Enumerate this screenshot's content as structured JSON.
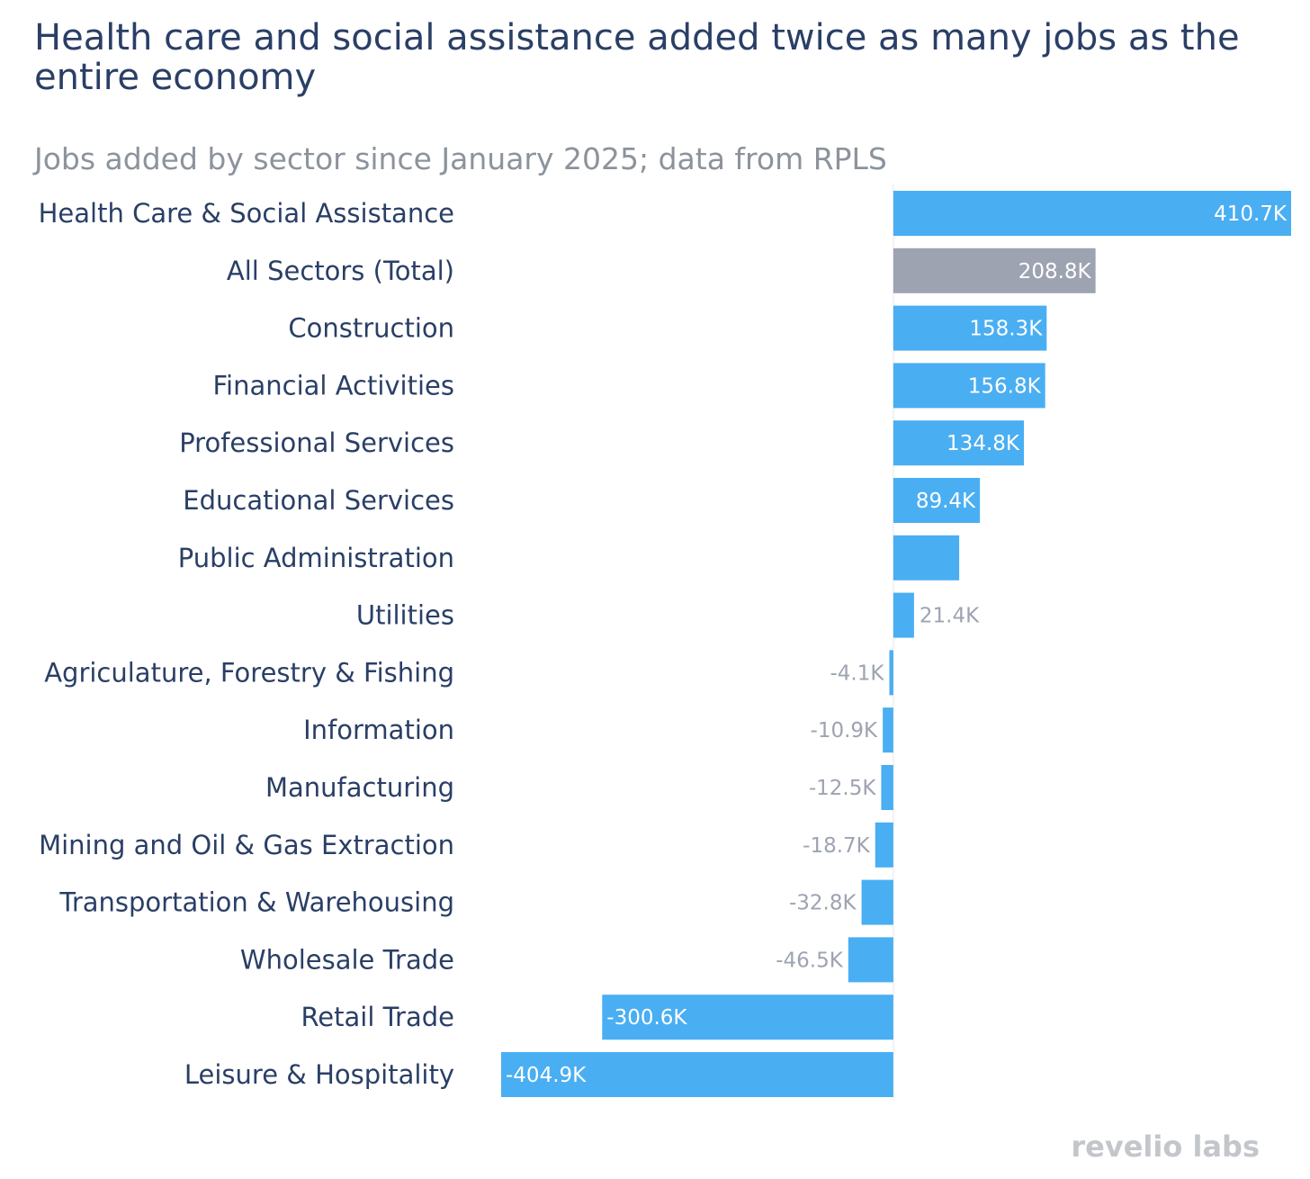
{
  "chart_data": {
    "type": "bar",
    "orientation": "horizontal",
    "title": "Health care and social assistance added twice as many jobs as the entire economy",
    "subtitle": "Jobs added by sector since January 2025; data from RPLS",
    "categories": [
      "Health Care & Social Assistance",
      "All Sectors (Total)",
      "Construction",
      "Financial Activities",
      "Professional Services",
      "Educational Services",
      "Public Administration",
      "Utilities",
      "Agriculature, Forestry & Fishing",
      "Information",
      "Manufacturing",
      "Mining and Oil & Gas Extraction",
      "Transportation & Warehousing",
      "Wholesale Trade",
      "Retail Trade",
      "Leisure & Hospitality"
    ],
    "values": [
      410.7,
      208.8,
      158.3,
      156.8,
      134.8,
      89.4,
      68,
      21.4,
      -4.1,
      -10.9,
      -12.5,
      -18.7,
      -32.8,
      -46.5,
      -300.6,
      -404.9
    ],
    "labels": [
      "410.7K",
      "208.8K",
      "158.3K",
      "156.8K",
      "134.8K",
      "89.4K",
      "",
      "21.4K",
      "-4.1K",
      "-10.9K",
      "-12.5K",
      "-18.7K",
      "-32.8K",
      "-46.5K",
      "-300.6K",
      "-404.9K"
    ],
    "value_unit": "thousands of jobs",
    "xlim": [
      -404.9,
      410.7
    ],
    "xlabel": "",
    "ylabel": "",
    "grid": false,
    "colors": {
      "bar": "#4aaef2",
      "total_bar": "#9ea3b2",
      "category_text": "#2a3f66",
      "inside_label": "#ffffff",
      "outside_label": "#9ea3b2",
      "zero_line": "#e6e8ec"
    },
    "highlight_index": 1
  },
  "brand": "revelio labs"
}
